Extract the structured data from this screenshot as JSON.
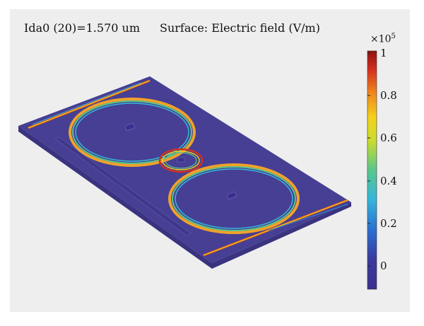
{
  "header": {
    "left_label": "Ida0 (20)=1.570 um",
    "right_label": "Surface: Electric field (V/m)"
  },
  "colorbar": {
    "multiplier_base": "×10",
    "multiplier_exp": "5",
    "ticks": [
      "1",
      "0.8",
      "0.6",
      "0.4",
      "0.2",
      "0"
    ],
    "colormap": [
      "#3b2f8e",
      "#2c6fd0",
      "#35b8d8",
      "#59c78a",
      "#c8dc2e",
      "#f4d21c",
      "#f08a1e",
      "#d4301e",
      "#8f1212"
    ]
  },
  "colors": {
    "background": "#eeeeee",
    "plate_top": "#453f93",
    "plate_side": "#3a3380"
  }
}
